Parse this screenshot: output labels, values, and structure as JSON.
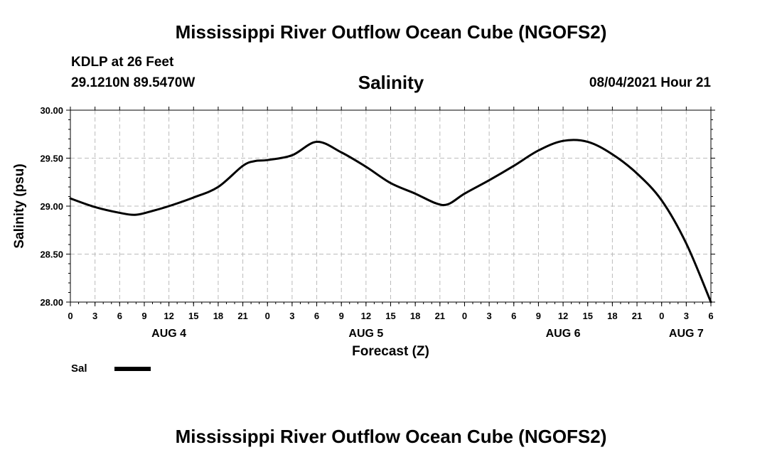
{
  "header": {
    "title": "Mississippi River Outflow Ocean Cube (NGOFS2)",
    "station": "KDLP at 26 Feet",
    "coordinates": "29.1210N  89.5470W",
    "chart_title": "Salinity",
    "datetime": "08/04/2021 Hour 21"
  },
  "footer": {
    "title": "Mississippi River Outflow Ocean Cube (NGOFS2)"
  },
  "legend": {
    "label": "Sal",
    "color": "#000000"
  },
  "chart_data": {
    "type": "line",
    "title": "Salinity",
    "xlabel": "Forecast (Z)",
    "ylabel": "Salinity (psu)",
    "xlim": [
      0,
      78
    ],
    "ylim": [
      28.0,
      30.0
    ],
    "y_ticks": [
      "28.00",
      "28.50",
      "29.00",
      "29.50",
      "30.00"
    ],
    "x_tick_hours": [
      0,
      3,
      6,
      9,
      12,
      15,
      18,
      21,
      24,
      27,
      30,
      33,
      36,
      39,
      42,
      45,
      48,
      51,
      54,
      57,
      60,
      63,
      66,
      69,
      72,
      75,
      78
    ],
    "x_tick_labels": [
      "0",
      "3",
      "6",
      "9",
      "12",
      "15",
      "18",
      "21",
      "0",
      "3",
      "6",
      "9",
      "12",
      "15",
      "18",
      "21",
      "0",
      "3",
      "6",
      "9",
      "12",
      "15",
      "18",
      "21",
      "0",
      "3",
      "6"
    ],
    "day_labels": [
      {
        "hour": 12,
        "label": "AUG 4"
      },
      {
        "hour": 36,
        "label": "AUG 5"
      },
      {
        "hour": 60,
        "label": "AUG 6"
      },
      {
        "hour": 75,
        "label": "AUG 7"
      }
    ],
    "grid": true,
    "legend_position": "bottom-left",
    "series": [
      {
        "name": "Sal",
        "color": "#000000",
        "x": [
          0,
          3,
          6,
          8,
          10,
          12,
          15,
          18,
          21,
          22.5,
          24,
          27,
          30,
          33,
          36,
          39,
          42,
          44.5,
          46,
          48,
          51,
          54,
          57,
          60,
          63,
          66,
          69,
          72,
          75,
          78
        ],
        "values": [
          29.08,
          28.99,
          28.93,
          28.91,
          28.95,
          29.0,
          29.09,
          29.2,
          29.42,
          29.47,
          29.48,
          29.53,
          29.67,
          29.56,
          29.41,
          29.24,
          29.13,
          29.03,
          29.02,
          29.13,
          29.27,
          29.42,
          29.58,
          29.68,
          29.67,
          29.54,
          29.34,
          29.06,
          28.61,
          28.0
        ]
      }
    ]
  }
}
